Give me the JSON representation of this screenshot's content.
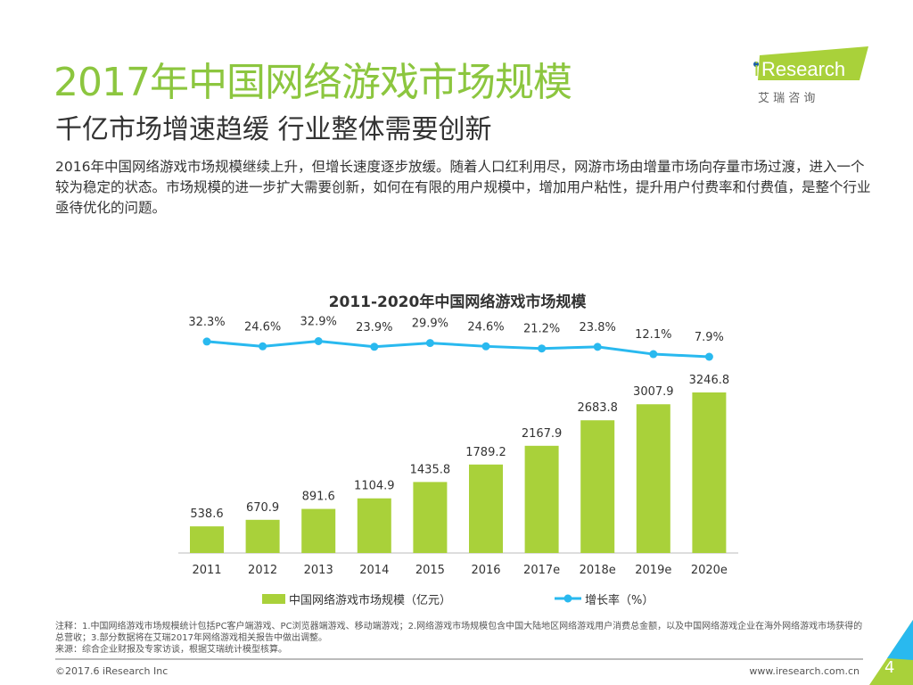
{
  "header": {
    "title": "2017年中国网络游戏市场规模",
    "subtitle": "千亿市场增速趋缓 行业整体需要创新",
    "intro": "2016年中国网络游戏市场规模继续上升，但增长速度逐步放缓。随着人口红利用尽，网游市场由增量市场向存量市场过渡，进入一个较为稳定的状态。市场规模的进一步扩大需要创新，如何在有限的用户规模中，增加用户粘性，提升用户付费率和付费值，是整个行业亟待优化的问题。"
  },
  "logo": {
    "text": "iResearch",
    "cn": "艾 瑞 咨 询"
  },
  "chart_data": {
    "type": "bar+line",
    "title": "2011-2020年中国网络游戏市场规模",
    "categories": [
      "2011",
      "2012",
      "2013",
      "2014",
      "2015",
      "2016",
      "2017e",
      "2018e",
      "2019e",
      "2020e"
    ],
    "series": [
      {
        "name": "中国网络游戏市场规模（亿元）",
        "type": "bar",
        "color": "#a9d13a",
        "values": [
          538.6,
          670.9,
          891.6,
          1104.9,
          1435.8,
          1789.2,
          2167.9,
          2683.8,
          3007.9,
          3246.8
        ]
      },
      {
        "name": "增长率（%）",
        "type": "line",
        "color": "#29b9ef",
        "values": [
          32.3,
          24.6,
          32.9,
          23.9,
          29.9,
          24.6,
          21.2,
          23.8,
          12.1,
          7.9
        ]
      }
    ],
    "legend": "bottom"
  },
  "footer": {
    "notes": "注释：1.中国网络游戏市场规模统计包括PC客户端游戏、PC浏览器端游戏、移动端游戏；2.网络游戏市场规模包含中国大陆地区网络游戏用户消费总金额，以及中国网络游戏企业在海外网络游戏市场获得的总营收；3.部分数据将在艾瑞2017年网络游戏相关报告中做出调整。",
    "source": "来源：综合企业财报及专家访谈，根据艾瑞统计模型核算。",
    "copyright": "©2017.6 iResearch Inc",
    "site": "www.iresearch.com.cn",
    "page": "4"
  }
}
